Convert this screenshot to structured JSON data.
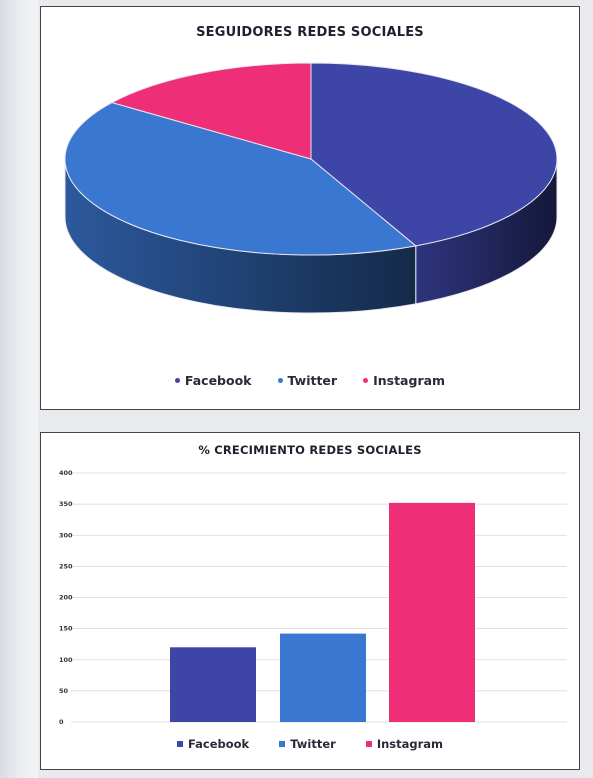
{
  "colors": {
    "facebook": "#3d45a6",
    "twitter": "#3a77d1",
    "instagram": "#ee2f78"
  },
  "chart_data": [
    {
      "type": "pie",
      "title": "SEGUIDORES REDES SOCIALES",
      "categories": [
        "Facebook",
        "Twitter",
        "Instagram"
      ],
      "values": [
        43,
        42,
        15
      ],
      "legend": "bottom",
      "style": "3d"
    },
    {
      "type": "bar",
      "title": "% CRECIMIENTO REDES SOCIALES",
      "categories": [
        "Facebook",
        "Twitter",
        "Instagram"
      ],
      "values": [
        120,
        142,
        352
      ],
      "ylim": [
        0,
        400
      ],
      "yticks": [
        "400",
        "350",
        "300",
        "250",
        "200",
        "150",
        "100",
        "50",
        "0"
      ],
      "grid": true,
      "legend": "bottom"
    }
  ]
}
